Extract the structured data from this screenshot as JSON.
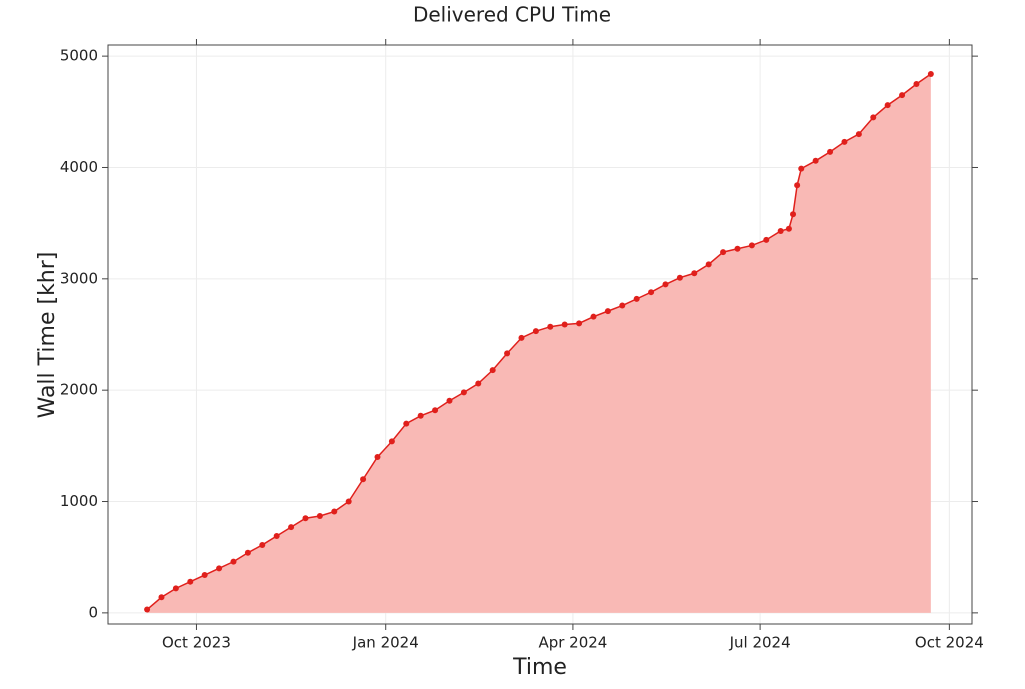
{
  "chart_data": {
    "type": "area",
    "title": "Delivered CPU Time",
    "x_label": "Time",
    "y_label": "Wall Time [khr]",
    "x": [
      "2023-09-07",
      "2023-09-14",
      "2023-09-21",
      "2023-09-28",
      "2023-10-05",
      "2023-10-12",
      "2023-10-19",
      "2023-10-26",
      "2023-11-02",
      "2023-11-09",
      "2023-11-16",
      "2023-11-23",
      "2023-11-30",
      "2023-12-07",
      "2023-12-14",
      "2023-12-21",
      "2023-12-28",
      "2024-01-04",
      "2024-01-11",
      "2024-01-18",
      "2024-01-25",
      "2024-02-01",
      "2024-02-08",
      "2024-02-15",
      "2024-02-22",
      "2024-02-29",
      "2024-03-07",
      "2024-03-14",
      "2024-03-21",
      "2024-03-28",
      "2024-04-04",
      "2024-04-11",
      "2024-04-18",
      "2024-04-25",
      "2024-05-02",
      "2024-05-09",
      "2024-05-16",
      "2024-05-23",
      "2024-05-30",
      "2024-06-06",
      "2024-06-13",
      "2024-06-20",
      "2024-06-27",
      "2024-07-04",
      "2024-07-11",
      "2024-07-15",
      "2024-07-17",
      "2024-07-19",
      "2024-07-21",
      "2024-07-28",
      "2024-08-04",
      "2024-08-11",
      "2024-08-18",
      "2024-08-25",
      "2024-09-01",
      "2024-09-08",
      "2024-09-15",
      "2024-09-22"
    ],
    "series": [
      {
        "color": "#e0201c",
        "fill": "#f9b9b5",
        "values": [
          30,
          140,
          220,
          280,
          340,
          400,
          460,
          540,
          610,
          690,
          770,
          850,
          870,
          910,
          1000,
          1200,
          1400,
          1540,
          1700,
          1770,
          1820,
          1905,
          1980,
          2060,
          2180,
          2330,
          2470,
          2530,
          2570,
          2590,
          2600,
          2660,
          2710,
          2760,
          2820,
          2880,
          2950,
          3010,
          3050,
          3130,
          3240,
          3270,
          3300,
          3350,
          3430,
          3450,
          3580,
          3840,
          3990,
          4060,
          4140,
          4230,
          4300,
          4450,
          4560,
          4650,
          4750,
          4840
        ]
      }
    ],
    "xlim": [
      "2023-08-19",
      "2024-10-12"
    ],
    "xticks": [
      {
        "value": "2023-10-01",
        "label": "Oct 2023"
      },
      {
        "value": "2024-01-01",
        "label": "Jan 2024"
      },
      {
        "value": "2024-04-01",
        "label": "Apr 2024"
      },
      {
        "value": "2024-07-01",
        "label": "Jul 2024"
      },
      {
        "value": "2024-10-01",
        "label": "Oct 2024"
      }
    ],
    "ylim": [
      -100,
      5100
    ],
    "yticks": [
      0,
      1000,
      2000,
      3000,
      4000,
      5000
    ],
    "grid": true
  }
}
